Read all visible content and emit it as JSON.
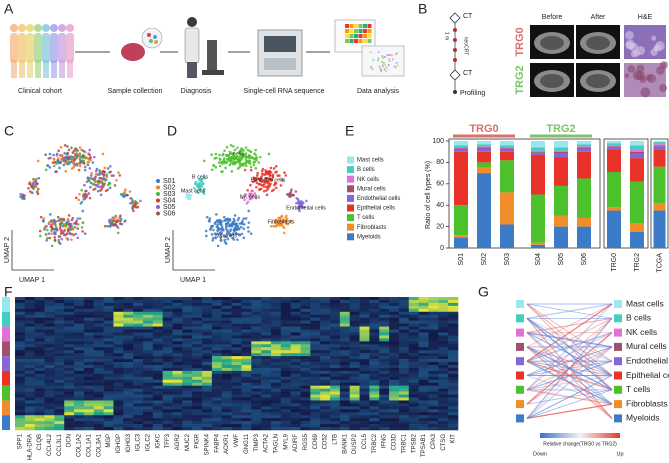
{
  "panel_labels": [
    "A",
    "B",
    "C",
    "D",
    "E",
    "F",
    "G"
  ],
  "workflow": {
    "steps": [
      "Clinical cohort",
      "Sample collection",
      "Diagnosis",
      "Single-cell RNA sequence",
      "Data analysis"
    ]
  },
  "timeline": {
    "start": "CT",
    "treatment": "neoCRT",
    "duration": "1 m",
    "follow_up": "CT",
    "end": "Profiling"
  },
  "imaging": {
    "columns": [
      "Before",
      "After",
      "H&E"
    ],
    "groups": [
      {
        "name": "TRG0",
        "color": "#d9706a"
      },
      {
        "name": "TRG2",
        "color": "#7cc36a"
      }
    ]
  },
  "umap_c": {
    "x_label": "UMAP 1",
    "y_label": "UMAP 2",
    "samples": [
      {
        "name": "S01",
        "color": "#2f7fd0"
      },
      {
        "name": "S02",
        "color": "#f07f22"
      },
      {
        "name": "S03",
        "color": "#3cb93c"
      },
      {
        "name": "S04",
        "color": "#e03030"
      },
      {
        "name": "S05",
        "color": "#8a5fd0"
      },
      {
        "name": "S06",
        "color": "#9a5a4a"
      }
    ]
  },
  "umap_d": {
    "x_label": "UMAP 1",
    "y_label": "UMAP 2"
  },
  "chart_data": {
    "type": "bar",
    "stacked": true,
    "y_label": "Ratio of cell types (%)",
    "categories": [
      "S01",
      "S02",
      "S03",
      "S04",
      "S05",
      "S06",
      "TRG0",
      "TRG2",
      "TCGA"
    ],
    "groups": [
      {
        "label": "TRG0",
        "color": "#d9706a",
        "members": [
          "S01",
          "S02",
          "S03"
        ]
      },
      {
        "label": "TRG2",
        "color": "#7cc36a",
        "members": [
          "S04",
          "S05",
          "S06"
        ]
      }
    ],
    "series": [
      {
        "name": "Myeloids",
        "color": "#3b7bc8",
        "values": [
          10,
          70,
          22,
          3,
          20,
          20,
          35,
          15,
          35
        ]
      },
      {
        "name": "Fibroblasts",
        "color": "#f08c2a",
        "values": [
          2,
          5,
          30,
          2,
          10,
          8,
          3,
          8,
          7
        ]
      },
      {
        "name": "T cells",
        "color": "#4cc12c",
        "values": [
          28,
          5,
          30,
          45,
          28,
          37,
          33,
          39,
          34
        ]
      },
      {
        "name": "Epithelial cells",
        "color": "#e8322a",
        "values": [
          50,
          10,
          8,
          37,
          27,
          25,
          21,
          22,
          16
        ]
      },
      {
        "name": "Endothelial cells",
        "color": "#8466d8",
        "values": [
          2,
          3,
          2,
          2,
          3,
          3,
          2,
          4,
          3
        ]
      },
      {
        "name": "Mural cells",
        "color": "#a0506e",
        "values": [
          1,
          1,
          1,
          1,
          2,
          1,
          1,
          2,
          1
        ]
      },
      {
        "name": "NK cells",
        "color": "#e36fd8",
        "values": [
          1,
          1,
          1,
          1,
          1,
          1,
          1,
          2,
          1
        ]
      },
      {
        "name": "B cells",
        "color": "#40cfc0",
        "values": [
          2,
          2,
          2,
          3,
          3,
          2,
          2,
          4,
          2
        ]
      },
      {
        "name": "Mast cells",
        "color": "#9ae8ee",
        "values": [
          4,
          3,
          4,
          6,
          6,
          3,
          2,
          4,
          1
        ]
      }
    ],
    "ylim": [
      0,
      100
    ],
    "yticks": [
      0,
      20,
      40,
      60,
      80,
      100
    ]
  },
  "heatmap": {
    "genes": [
      "SPP1",
      "HLA-DRA",
      "C1QB",
      "CCL4L2",
      "CCL3L1",
      "DCN",
      "COL1A2",
      "COL1A1",
      "COL3A1",
      "MGP",
      "IGHGP",
      "IGHG3",
      "IGLC3",
      "IGLC2",
      "IGKC",
      "TFF3",
      "AGR2",
      "MUC2",
      "PIGR",
      "SPINK4",
      "FABP4",
      "ACKR1",
      "VWF",
      "GNG11",
      "TIMP3",
      "ACTA2",
      "TAGLN",
      "MYL9",
      "ADIRF",
      "RGS5",
      "CD69",
      "CD52",
      "LTB",
      "BANK1",
      "DUSP2",
      "CCL5",
      "TRBC2",
      "IFNG",
      "CD3D",
      "TRBC1",
      "TPSB2",
      "TPSAB1",
      "CPA3",
      "CTSG",
      "KIT"
    ]
  },
  "change": {
    "colorbar_label": "Relative change(TRG0 vs TRG2)",
    "low": "Down",
    "high": "Up"
  }
}
